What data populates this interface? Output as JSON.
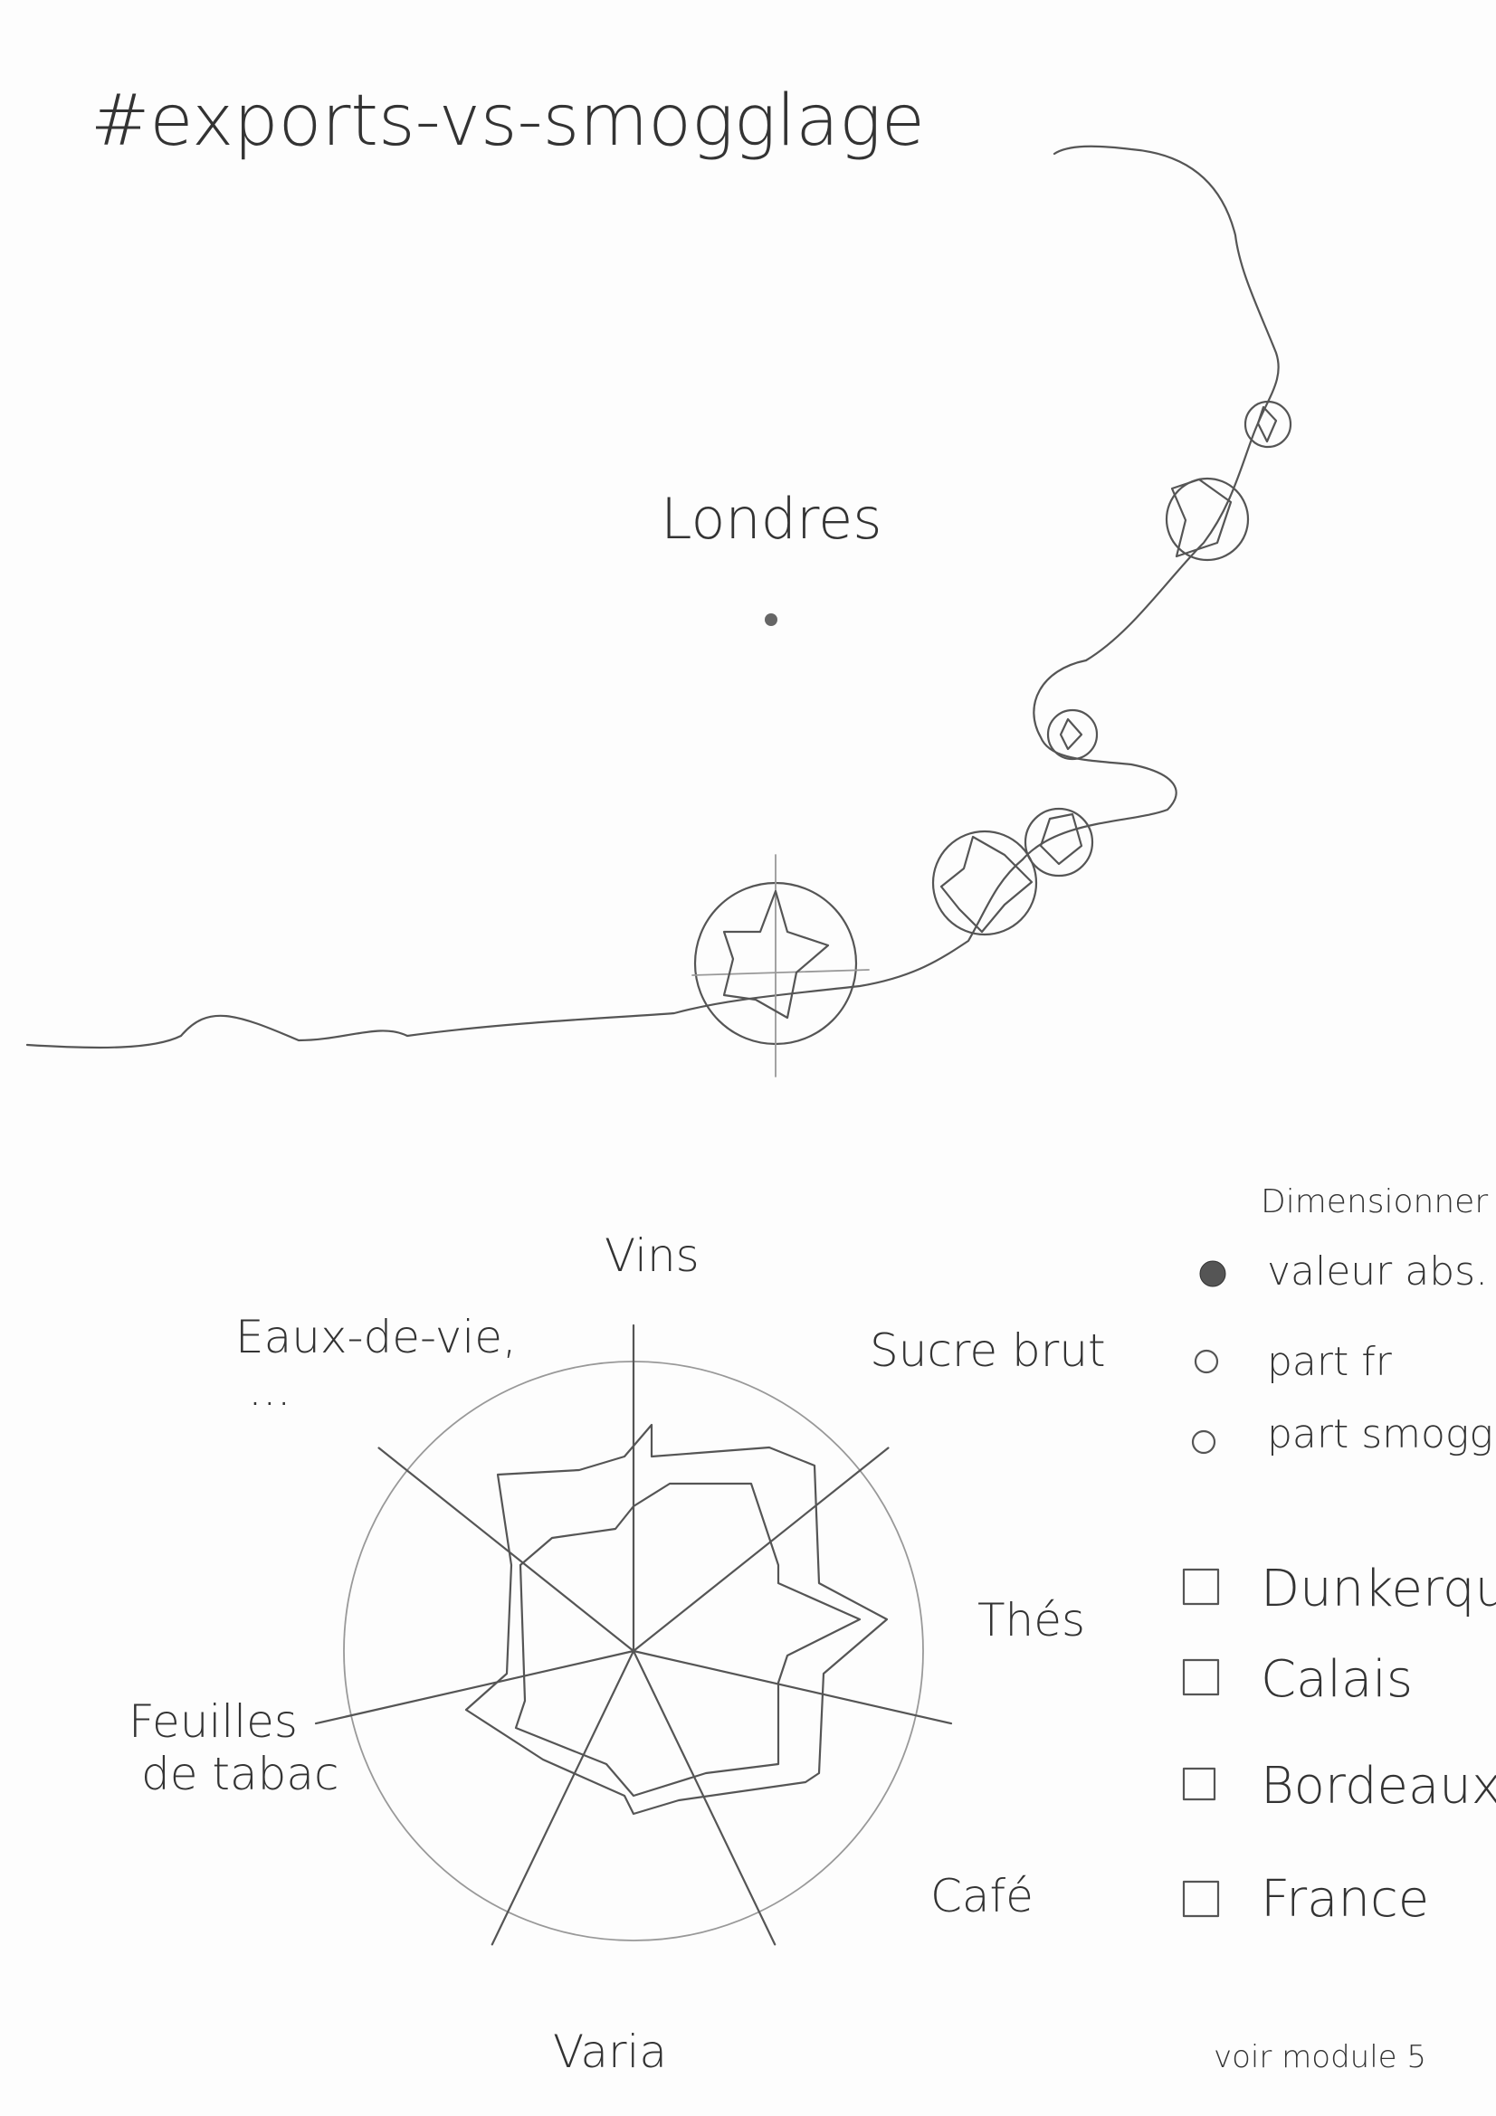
{
  "title": "#exports-vs-smogglage",
  "map": {
    "city_label": "Londres"
  },
  "radar": {
    "axes": [
      [
        "Vins"
      ],
      [
        "Sucre brut"
      ],
      [
        "Thés"
      ],
      [
        "Café"
      ],
      [
        "Varia"
      ],
      [
        "Feuilles",
        "de tabac"
      ],
      [
        "Eaux-de-vie,",
        "..."
      ]
    ]
  },
  "legend": {
    "size_title": "Dimensionner par:",
    "size_options": [
      "valeur abs.",
      "part fr",
      "part smogglers"
    ],
    "filters": [
      "Dunkerque",
      "Calais",
      "Bordeaux",
      "France"
    ]
  },
  "footer": "voir module 5"
}
